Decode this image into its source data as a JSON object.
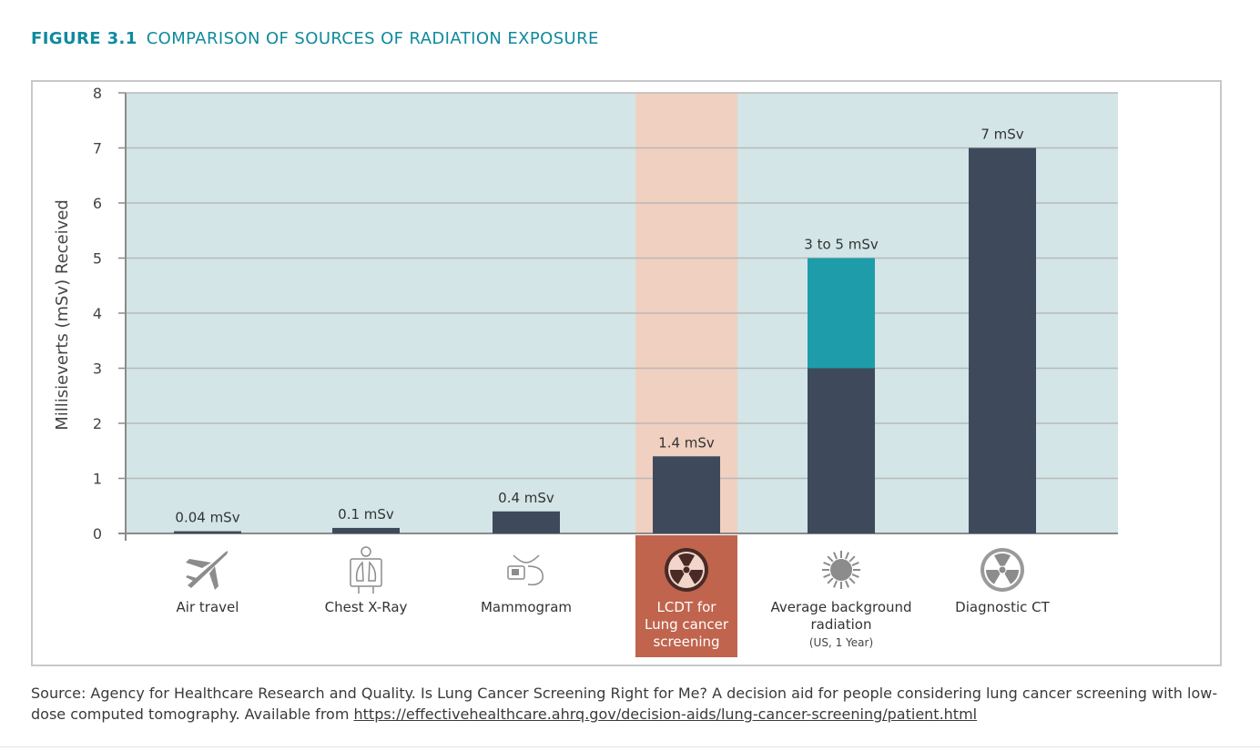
{
  "figure": {
    "number": "FIGURE 3.1",
    "title": "COMPARISON OF SOURCES OF RADIATION EXPOSURE"
  },
  "source": {
    "text": "Source: Agency for Healthcare Research and Quality. Is Lung Cancer Screening Right for Me? A decision aid for people considering lung cancer screening with low-dose computed tomography. Available from ",
    "link": "https://effectivehealthcare.ahrq.gov/decision-aids/lung-cancer-screening/patient.html"
  },
  "colors": {
    "title": "#0f8a9e",
    "plot_bg": "#d3e5e6",
    "highlight_band": "#f0d0c0",
    "highlight_label_bg": "#c0644e",
    "bar": "#3e4a5c",
    "bar_range": "#1f9caa",
    "grid": "#b9b9b9",
    "axis": "#8a8a8a",
    "icon": "#8c8c8c"
  },
  "chart_data": {
    "type": "bar",
    "ylabel": "Millisieverts (mSv) Received",
    "ylim": [
      0,
      8
    ],
    "yticks": [
      "0",
      "1",
      "2",
      "3",
      "4",
      "5",
      "6",
      "7",
      "8"
    ],
    "grid": true,
    "highlight_index": 3,
    "bars": [
      {
        "category": [
          "Air travel"
        ],
        "value": 0.04,
        "label": "0.04 mSv",
        "icon": "airplane-icon"
      },
      {
        "category": [
          "Chest X-Ray"
        ],
        "value": 0.1,
        "label": "0.1 mSv",
        "icon": "chest-xray-icon"
      },
      {
        "category": [
          "Mammogram"
        ],
        "value": 0.4,
        "label": "0.4 mSv",
        "icon": "mammogram-icon"
      },
      {
        "category": [
          "LCDT for",
          "Lung cancer",
          "screening"
        ],
        "value": 1.4,
        "label": "1.4 mSv",
        "icon": "radiation-icon"
      },
      {
        "category": [
          "Average background",
          "radiation"
        ],
        "subcategory": "(US, 1 Year)",
        "value": 3,
        "range_top": 5,
        "label": "3 to 5 mSv",
        "icon": "sun-icon"
      },
      {
        "category": [
          "Diagnostic CT"
        ],
        "value": 7,
        "label": "7 mSv",
        "icon": "radiation-icon"
      }
    ]
  }
}
